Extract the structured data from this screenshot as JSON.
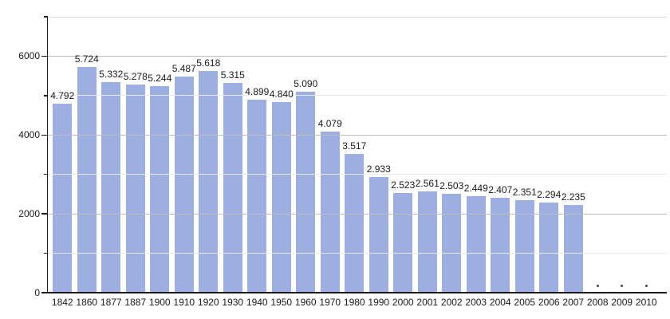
{
  "chart_data": {
    "type": "bar",
    "title": "",
    "xlabel": "",
    "ylabel": "",
    "categories": [
      "1842",
      "1860",
      "1877",
      "1887",
      "1900",
      "1910",
      "1920",
      "1930",
      "1940",
      "1950",
      "1960",
      "1970",
      "1980",
      "1990",
      "2000",
      "2001",
      "2002",
      "2003",
      "2004",
      "2005",
      "2006",
      "2007",
      "2008",
      "2009",
      "2010"
    ],
    "values": [
      4792,
      5724,
      5332,
      5278,
      5244,
      5487,
      5618,
      5315,
      4899,
      4840,
      5090,
      4079,
      3517,
      2933,
      2523,
      2561,
      2503,
      2449,
      2407,
      2351,
      2294,
      2235,
      null,
      null,
      null
    ],
    "value_labels": [
      "4.792",
      "5.724",
      "5.332",
      "5.278",
      "5.244",
      "5.487",
      "5.618",
      "5.315",
      "4.899",
      "4.840",
      "5.090",
      "4.079",
      "3.517",
      "2.933",
      "2.523",
      "2.561",
      "2.503",
      "2.449",
      "2.407",
      "2.351",
      "2.294",
      "2.235",
      "",
      "",
      ""
    ],
    "ylim": [
      0,
      7000
    ],
    "yticks_major": {
      "values": [
        0,
        2000,
        4000,
        6000
      ],
      "labels": [
        "0",
        "2000",
        "4000",
        "6000"
      ]
    },
    "yticks_minor": [
      1000,
      3000,
      5000,
      7000
    ],
    "gridlines": {
      "major": [
        2000,
        4000,
        6000
      ],
      "minor": [
        1000,
        3000,
        5000
      ],
      "top": 7000
    },
    "legend": "none",
    "grid": true,
    "missing_value_marker": "dot"
  },
  "colors": {
    "bar": "#9cafe0",
    "grid_major": "#bdbdbd",
    "grid_minor": "#e9e9e9",
    "grid_top": "#dadada",
    "axis": "#1a1a1a",
    "text": "#1a1a1a",
    "marker": "#444444"
  }
}
